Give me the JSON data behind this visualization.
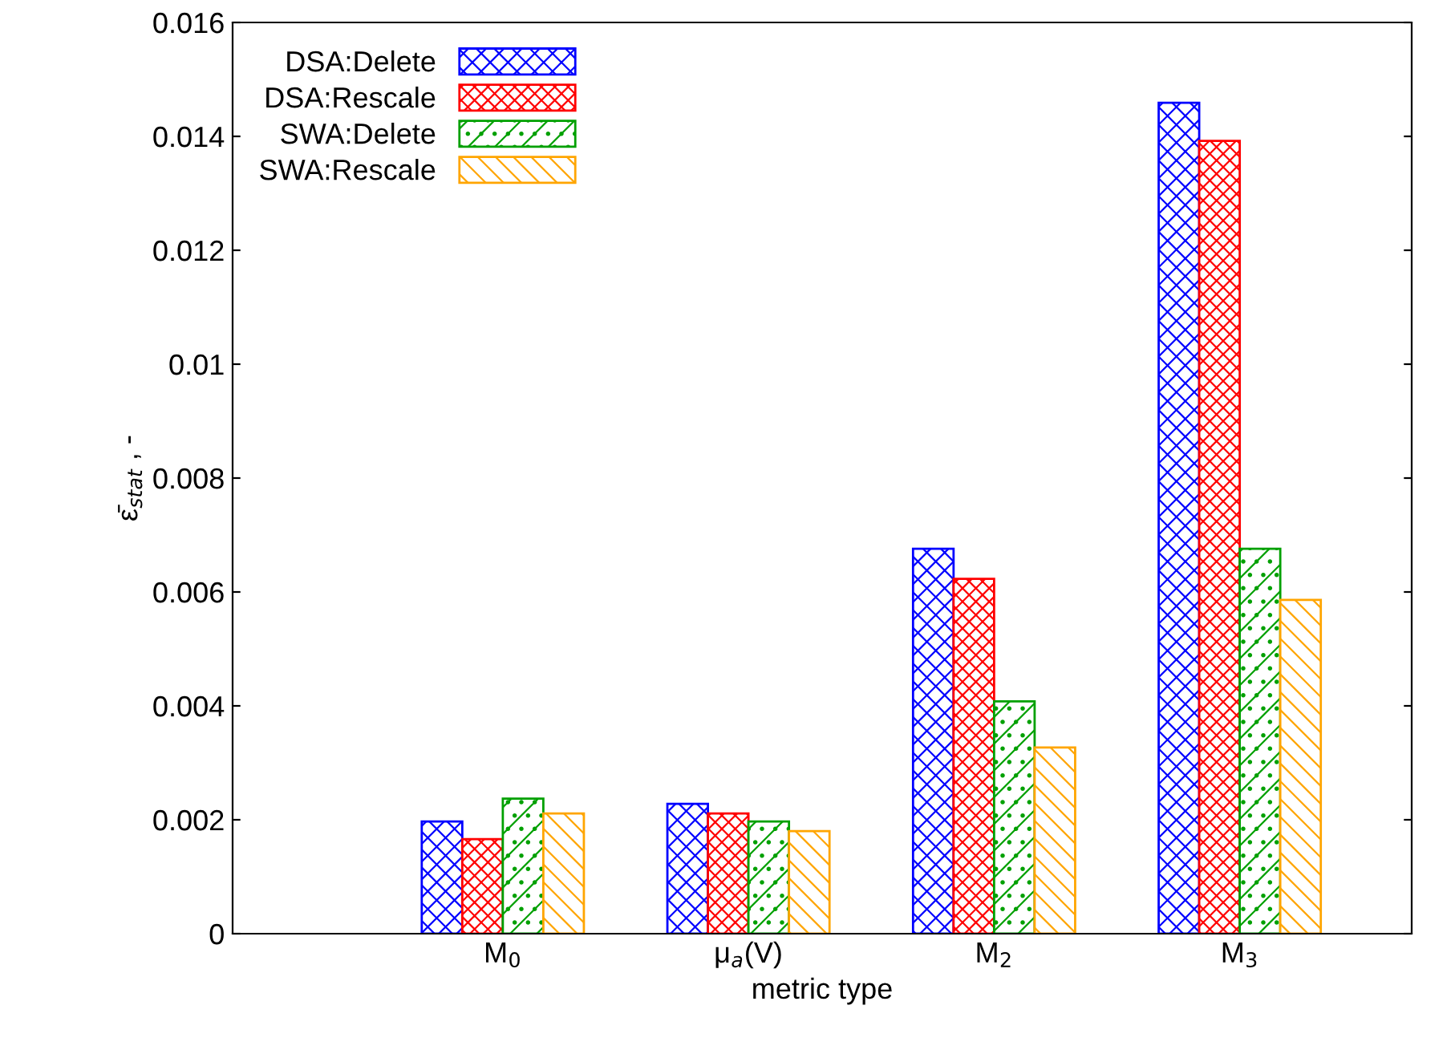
{
  "chart_data": {
    "type": "bar",
    "xlabel": "metric type",
    "ylabel": "ε̄$_{stat}$ , -",
    "categories": [
      "M$_{0}$",
      "μ$_{a}$(V)",
      "M$_{2}$",
      "M$_{3}$"
    ],
    "series": [
      {
        "name": "DSA:Delete",
        "color": "#0000ff",
        "values": [
          0.00197,
          0.00228,
          0.00676,
          0.01459
        ]
      },
      {
        "name": "DSA:Rescale",
        "color": "#ff0000",
        "values": [
          0.00166,
          0.00211,
          0.00623,
          0.01392
        ]
      },
      {
        "name": "SWA:Delete",
        "color": "#00a000",
        "values": [
          0.00237,
          0.00197,
          0.00408,
          0.00676
        ]
      },
      {
        "name": "SWA:Rescale",
        "color": "#ffa500",
        "values": [
          0.00211,
          0.0018,
          0.00327,
          0.00586
        ]
      }
    ],
    "ylim": [
      0,
      0.016
    ],
    "yticks": [
      0,
      0.002,
      0.004,
      0.006,
      0.008,
      0.01,
      0.012,
      0.014,
      0.016
    ],
    "grid": false,
    "legend": "top left"
  }
}
